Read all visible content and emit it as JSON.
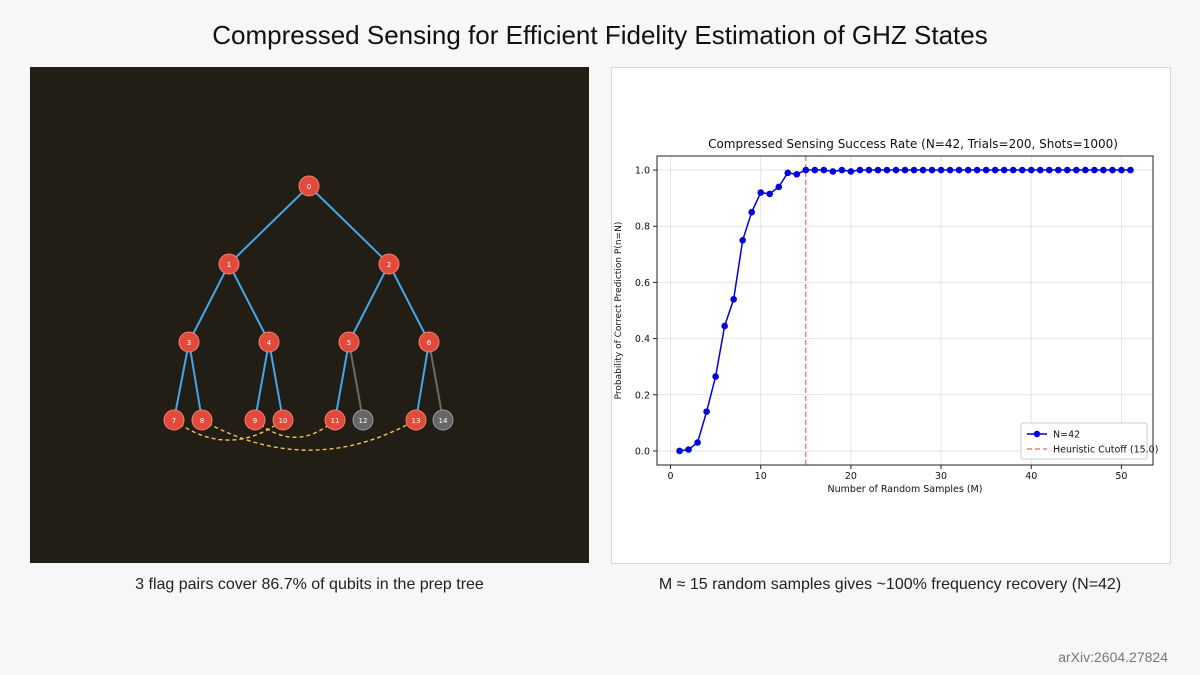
{
  "slide": {
    "title": "Compressed Sensing for Efficient Fidelity Estimation of GHZ States",
    "caption_left": "3 flag pairs cover 86.7% of qubits in the prep tree",
    "caption_right": "M ≈ 15 random samples gives ~100% frequency recovery (N=42)",
    "footer": "arXiv:2604.27824"
  },
  "colors": {
    "panel_bg": "#221e16",
    "flagged_node": "#e24a3b",
    "unflagged_node": "#666666",
    "tree_edge": "#46a6e8",
    "unflagged_edge": "#6b6b6b",
    "flag_link": "#f0c450",
    "series": "#0000dd",
    "cutoff": "#ee6666"
  },
  "tree": {
    "nodes": [
      {
        "id": "0",
        "flagged": true
      },
      {
        "id": "1",
        "flagged": true
      },
      {
        "id": "2",
        "flagged": true
      },
      {
        "id": "3",
        "flagged": true
      },
      {
        "id": "4",
        "flagged": true
      },
      {
        "id": "5",
        "flagged": true
      },
      {
        "id": "6",
        "flagged": true
      },
      {
        "id": "7",
        "flagged": true
      },
      {
        "id": "8",
        "flagged": true
      },
      {
        "id": "9",
        "flagged": true
      },
      {
        "id": "10",
        "flagged": true
      },
      {
        "id": "11",
        "flagged": true
      },
      {
        "id": "12",
        "flagged": false
      },
      {
        "id": "13",
        "flagged": true
      },
      {
        "id": "14",
        "flagged": false
      }
    ],
    "edges": [
      [
        "0",
        "1"
      ],
      [
        "0",
        "2"
      ],
      [
        "1",
        "3"
      ],
      [
        "1",
        "4"
      ],
      [
        "2",
        "5"
      ],
      [
        "2",
        "6"
      ],
      [
        "3",
        "7"
      ],
      [
        "3",
        "8"
      ],
      [
        "4",
        "9"
      ],
      [
        "4",
        "10"
      ],
      [
        "5",
        "11"
      ],
      [
        "5",
        "12"
      ],
      [
        "6",
        "13"
      ],
      [
        "6",
        "14"
      ]
    ],
    "flag_pairs": [
      [
        "7",
        "10"
      ],
      [
        "8",
        "13"
      ],
      [
        "9",
        "11"
      ]
    ]
  },
  "chart_data": {
    "type": "line",
    "title": "Compressed Sensing Success Rate (N=42, Trials=200, Shots=1000)",
    "xlabel": "Number of Random Samples (M)",
    "ylabel": "Probability of Correct Prediction P(n=N)",
    "xlim": [
      -1.5,
      53.5
    ],
    "ylim": [
      -0.05,
      1.05
    ],
    "xticks": [
      0,
      10,
      20,
      30,
      40,
      50
    ],
    "yticks": [
      0.0,
      0.2,
      0.4,
      0.6,
      0.8,
      1.0
    ],
    "grid": true,
    "legend_position": "lower-right",
    "series": [
      {
        "name": "N=42",
        "x": [
          1,
          2,
          3,
          4,
          5,
          6,
          7,
          8,
          9,
          10,
          11,
          12,
          13,
          14,
          15,
          16,
          17,
          18,
          19,
          20,
          21,
          22,
          23,
          24,
          25,
          26,
          27,
          28,
          29,
          30,
          31,
          32,
          33,
          34,
          35,
          36,
          37,
          38,
          39,
          40,
          41,
          42,
          43,
          44,
          45,
          46,
          47,
          48,
          49,
          50,
          51
        ],
        "y": [
          0.0,
          0.005,
          0.03,
          0.14,
          0.265,
          0.445,
          0.54,
          0.75,
          0.85,
          0.92,
          0.915,
          0.94,
          0.99,
          0.985,
          1.0,
          1.0,
          1.0,
          0.995,
          1.0,
          0.995,
          1.0,
          1.0,
          1.0,
          1.0,
          1.0,
          1.0,
          1.0,
          1.0,
          1.0,
          1.0,
          1.0,
          1.0,
          1.0,
          1.0,
          1.0,
          1.0,
          1.0,
          1.0,
          1.0,
          1.0,
          1.0,
          1.0,
          1.0,
          1.0,
          1.0,
          1.0,
          1.0,
          1.0,
          1.0,
          1.0,
          1.0
        ]
      }
    ],
    "cutoff": {
      "name": "Heuristic Cutoff (15.0)",
      "x": 15.0
    }
  }
}
